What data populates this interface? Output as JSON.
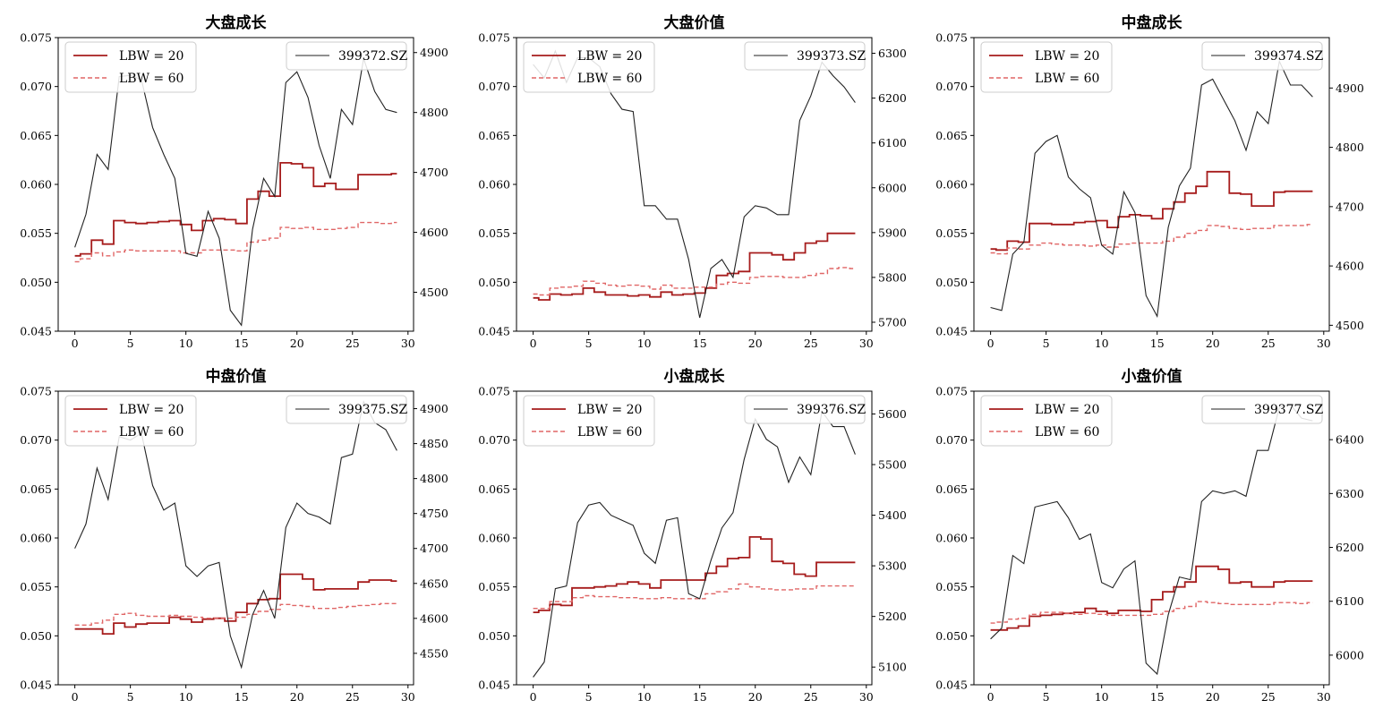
{
  "colors": {
    "lbw20": "#a61c1c",
    "lbw60": "#e06666",
    "index": "#222222",
    "axis": "#000000"
  },
  "chart_data": [
    {
      "type": "line",
      "title": "大盘成长",
      "x": [
        0,
        1,
        2,
        3,
        4,
        5,
        6,
        7,
        8,
        9,
        10,
        11,
        12,
        13,
        14,
        15,
        16,
        17,
        18,
        19,
        20,
        21,
        22,
        23,
        24,
        25,
        26,
        27,
        28,
        29
      ],
      "xlim": [
        -1.5,
        30.5
      ],
      "xticks": [
        "0",
        "5",
        "10",
        "15",
        "20",
        "25",
        "30"
      ],
      "ylim": [
        0.045,
        0.075
      ],
      "yticks": [
        "0.045",
        "0.050",
        "0.055",
        "0.060",
        "0.065",
        "0.070",
        "0.075"
      ],
      "y2lim": [
        4435,
        4925
      ],
      "y2ticks": [
        "4500",
        "4600",
        "4700",
        "4800",
        "4900"
      ],
      "legend_left": [
        "LBW = 20",
        "LBW = 60"
      ],
      "legend_right": "399372.SZ",
      "series": [
        {
          "name": "LBW = 20",
          "axis": "left",
          "style": "step",
          "values": [
            0.0527,
            0.0529,
            0.0543,
            0.0539,
            0.0563,
            0.0561,
            0.056,
            0.0561,
            0.0562,
            0.0563,
            0.0559,
            0.0553,
            0.0563,
            0.0565,
            0.0564,
            0.056,
            0.0585,
            0.0593,
            0.0588,
            0.0622,
            0.0621,
            0.0617,
            0.0598,
            0.0601,
            0.0595,
            0.0595,
            0.061,
            0.061,
            0.061,
            0.0611
          ]
        },
        {
          "name": "LBW = 60",
          "axis": "left",
          "style": "step-dashed",
          "values": [
            0.0521,
            0.0524,
            0.053,
            0.0527,
            0.0531,
            0.0533,
            0.0532,
            0.0532,
            0.0532,
            0.0532,
            0.053,
            0.053,
            0.0533,
            0.0533,
            0.0533,
            0.0532,
            0.0541,
            0.0543,
            0.0545,
            0.0556,
            0.0555,
            0.0556,
            0.0554,
            0.0554,
            0.0555,
            0.0556,
            0.0561,
            0.0561,
            0.056,
            0.0561
          ]
        },
        {
          "name": "399372.SZ",
          "axis": "right",
          "style": "line",
          "values": [
            4575,
            4630,
            4730,
            4705,
            4860,
            4862,
            4855,
            4775,
            4730,
            4690,
            4565,
            4560,
            4635,
            4590,
            4470,
            4445,
            4605,
            4690,
            4660,
            4850,
            4868,
            4825,
            4745,
            4690,
            4805,
            4780,
            4890,
            4835,
            4805,
            4800
          ]
        }
      ]
    },
    {
      "type": "line",
      "title": "大盘价值",
      "x": [
        0,
        1,
        2,
        3,
        4,
        5,
        6,
        7,
        8,
        9,
        10,
        11,
        12,
        13,
        14,
        15,
        16,
        17,
        18,
        19,
        20,
        21,
        22,
        23,
        24,
        25,
        26,
        27,
        28,
        29
      ],
      "xlim": [
        -1.5,
        30.5
      ],
      "xticks": [
        "0",
        "5",
        "10",
        "15",
        "20",
        "25",
        "30"
      ],
      "ylim": [
        0.045,
        0.075
      ],
      "yticks": [
        "0.045",
        "0.050",
        "0.055",
        "0.060",
        "0.065",
        "0.070",
        "0.075"
      ],
      "y2lim": [
        5680,
        6335
      ],
      "y2ticks": [
        "5700",
        "5800",
        "5900",
        "6000",
        "6100",
        "6200",
        "6300"
      ],
      "legend_left": [
        "LBW = 20",
        "LBW = 60"
      ],
      "legend_right": "399373.SZ",
      "series": [
        {
          "name": "LBW = 20",
          "axis": "left",
          "style": "step",
          "values": [
            0.0484,
            0.0482,
            0.0488,
            0.0487,
            0.0488,
            0.0494,
            0.049,
            0.0487,
            0.0487,
            0.0486,
            0.0487,
            0.0485,
            0.049,
            0.0487,
            0.0488,
            0.0489,
            0.0494,
            0.0507,
            0.0509,
            0.0511,
            0.053,
            0.053,
            0.0528,
            0.0523,
            0.053,
            0.054,
            0.0542,
            0.055,
            0.055,
            0.055
          ]
        },
        {
          "name": "LBW = 60",
          "axis": "left",
          "style": "step-dashed",
          "values": [
            0.0488,
            0.0487,
            0.0494,
            0.0495,
            0.0496,
            0.0501,
            0.0499,
            0.0497,
            0.0496,
            0.0497,
            0.0496,
            0.0493,
            0.0497,
            0.0494,
            0.0494,
            0.0495,
            0.0495,
            0.0498,
            0.05,
            0.0499,
            0.0505,
            0.0506,
            0.0506,
            0.0505,
            0.0505,
            0.0507,
            0.0509,
            0.0514,
            0.0515,
            0.0514
          ]
        },
        {
          "name": "399373.SZ",
          "axis": "right",
          "style": "line",
          "values": [
            6275,
            6245,
            6305,
            6235,
            6290,
            6290,
            6270,
            6210,
            6175,
            6170,
            5960,
            5960,
            5930,
            5930,
            5840,
            5710,
            5820,
            5840,
            5800,
            5935,
            5960,
            5955,
            5940,
            5940,
            6150,
            6205,
            6280,
            6250,
            6225,
            6190
          ]
        }
      ]
    },
    {
      "type": "line",
      "title": "中盘成长",
      "x": [
        0,
        1,
        2,
        3,
        4,
        5,
        6,
        7,
        8,
        9,
        10,
        11,
        12,
        13,
        14,
        15,
        16,
        17,
        18,
        19,
        20,
        21,
        22,
        23,
        24,
        25,
        26,
        27,
        28,
        29
      ],
      "xlim": [
        -1.5,
        30.5
      ],
      "xticks": [
        "0",
        "5",
        "10",
        "15",
        "20",
        "25",
        "30"
      ],
      "ylim": [
        0.045,
        0.075
      ],
      "yticks": [
        "0.045",
        "0.050",
        "0.055",
        "0.060",
        "0.065",
        "0.070",
        "0.075"
      ],
      "y2lim": [
        4490,
        4985
      ],
      "y2ticks": [
        "4500",
        "4600",
        "4700",
        "4800",
        "4900"
      ],
      "legend_left": [
        "LBW = 20",
        "LBW = 60"
      ],
      "legend_right": "399374.SZ",
      "series": [
        {
          "name": "LBW = 20",
          "axis": "left",
          "style": "step",
          "values": [
            0.0534,
            0.0533,
            0.0542,
            0.0541,
            0.056,
            0.056,
            0.0559,
            0.0559,
            0.0561,
            0.0562,
            0.0563,
            0.0556,
            0.0567,
            0.0569,
            0.0568,
            0.0565,
            0.0575,
            0.0582,
            0.0591,
            0.0598,
            0.0613,
            0.0613,
            0.0591,
            0.059,
            0.0578,
            0.0578,
            0.0592,
            0.0593,
            0.0593,
            0.0593
          ]
        },
        {
          "name": "LBW = 60",
          "axis": "left",
          "style": "step-dashed",
          "values": [
            0.053,
            0.0529,
            0.0535,
            0.0534,
            0.0538,
            0.054,
            0.0539,
            0.0538,
            0.0538,
            0.0537,
            0.0538,
            0.0536,
            0.0539,
            0.054,
            0.054,
            0.054,
            0.0542,
            0.0546,
            0.055,
            0.0553,
            0.0558,
            0.0557,
            0.0555,
            0.0554,
            0.0555,
            0.0555,
            0.0558,
            0.0558,
            0.0558,
            0.0559
          ]
        },
        {
          "name": "399374.SZ",
          "axis": "right",
          "style": "line",
          "values": [
            4530,
            4525,
            4620,
            4640,
            4790,
            4810,
            4820,
            4750,
            4730,
            4715,
            4635,
            4620,
            4725,
            4690,
            4550,
            4515,
            4665,
            4735,
            4765,
            4905,
            4915,
            4880,
            4845,
            4795,
            4860,
            4840,
            4945,
            4905,
            4905,
            4885
          ]
        }
      ]
    },
    {
      "type": "line",
      "title": "中盘价值",
      "x": [
        0,
        1,
        2,
        3,
        4,
        5,
        6,
        7,
        8,
        9,
        10,
        11,
        12,
        13,
        14,
        15,
        16,
        17,
        18,
        19,
        20,
        21,
        22,
        23,
        24,
        25,
        26,
        27,
        28,
        29
      ],
      "xlim": [
        -1.5,
        30.5
      ],
      "xticks": [
        "0",
        "5",
        "10",
        "15",
        "20",
        "25",
        "30"
      ],
      "ylim": [
        0.045,
        0.075
      ],
      "yticks": [
        "0.045",
        "0.050",
        "0.055",
        "0.060",
        "0.065",
        "0.070",
        "0.075"
      ],
      "y2lim": [
        4505,
        4925
      ],
      "y2ticks": [
        "4550",
        "4600",
        "4650",
        "4700",
        "4750",
        "4800",
        "4850",
        "4900"
      ],
      "legend_left": [
        "LBW = 20",
        "LBW = 60"
      ],
      "legend_right": "399375.SZ",
      "series": [
        {
          "name": "LBW = 20",
          "axis": "left",
          "style": "step",
          "values": [
            0.0507,
            0.0507,
            0.0507,
            0.0502,
            0.0513,
            0.0509,
            0.0512,
            0.0513,
            0.0513,
            0.0519,
            0.0517,
            0.0514,
            0.0517,
            0.0518,
            0.0515,
            0.0524,
            0.0533,
            0.0537,
            0.0538,
            0.0563,
            0.0563,
            0.0558,
            0.0547,
            0.0548,
            0.0548,
            0.0548,
            0.0555,
            0.0557,
            0.0557,
            0.0556
          ]
        },
        {
          "name": "LBW = 60",
          "axis": "left",
          "style": "step-dashed",
          "values": [
            0.0511,
            0.0511,
            0.0513,
            0.0516,
            0.0522,
            0.0523,
            0.0521,
            0.052,
            0.052,
            0.0521,
            0.052,
            0.0519,
            0.0518,
            0.0518,
            0.0518,
            0.0519,
            0.0522,
            0.0525,
            0.0527,
            0.0532,
            0.0531,
            0.053,
            0.0528,
            0.0528,
            0.0529,
            0.053,
            0.0531,
            0.0532,
            0.0533,
            0.0533
          ]
        },
        {
          "name": "399375.SZ",
          "axis": "right",
          "style": "line",
          "values": [
            4700,
            4735,
            4815,
            4770,
            4860,
            4855,
            4865,
            4790,
            4755,
            4765,
            4675,
            4660,
            4675,
            4680,
            4575,
            4530,
            4605,
            4640,
            4600,
            4730,
            4765,
            4750,
            4745,
            4735,
            4830,
            4835,
            4910,
            4880,
            4870,
            4840
          ]
        }
      ]
    },
    {
      "type": "line",
      "title": "小盘成长",
      "x": [
        0,
        1,
        2,
        3,
        4,
        5,
        6,
        7,
        8,
        9,
        10,
        11,
        12,
        13,
        14,
        15,
        16,
        17,
        18,
        19,
        20,
        21,
        22,
        23,
        24,
        25,
        26,
        27,
        28,
        29
      ],
      "xlim": [
        -1.5,
        30.5
      ],
      "xticks": [
        "0",
        "5",
        "10",
        "15",
        "20",
        "25",
        "30"
      ],
      "ylim": [
        0.045,
        0.075
      ],
      "yticks": [
        "0.045",
        "0.050",
        "0.055",
        "0.060",
        "0.065",
        "0.070",
        "0.075"
      ],
      "y2lim": [
        5065,
        5645
      ],
      "y2ticks": [
        "5100",
        "5200",
        "5300",
        "5400",
        "5500",
        "5600"
      ],
      "legend_left": [
        "LBW = 20",
        "LBW = 60"
      ],
      "legend_right": "399376.SZ",
      "series": [
        {
          "name": "LBW = 20",
          "axis": "left",
          "style": "step",
          "values": [
            0.0524,
            0.0526,
            0.0532,
            0.0531,
            0.0549,
            0.0549,
            0.055,
            0.0551,
            0.0553,
            0.0555,
            0.0553,
            0.0549,
            0.0557,
            0.0557,
            0.0557,
            0.0557,
            0.0564,
            0.0571,
            0.0579,
            0.058,
            0.0601,
            0.0599,
            0.0576,
            0.0574,
            0.0563,
            0.0561,
            0.0575,
            0.0575,
            0.0575,
            0.0575
          ]
        },
        {
          "name": "LBW = 60",
          "axis": "left",
          "style": "step-dashed",
          "values": [
            0.0528,
            0.0528,
            0.0535,
            0.0535,
            0.0539,
            0.0541,
            0.054,
            0.054,
            0.0539,
            0.0539,
            0.0538,
            0.0538,
            0.0539,
            0.0538,
            0.0538,
            0.0538,
            0.0543,
            0.0545,
            0.0548,
            0.0553,
            0.055,
            0.0548,
            0.0547,
            0.0547,
            0.0548,
            0.0548,
            0.0551,
            0.0551,
            0.0551,
            0.0551
          ]
        },
        {
          "name": "399376.SZ",
          "axis": "right",
          "style": "line",
          "values": [
            5080,
            5110,
            5255,
            5260,
            5385,
            5420,
            5425,
            5400,
            5390,
            5380,
            5325,
            5305,
            5390,
            5395,
            5245,
            5235,
            5310,
            5375,
            5405,
            5510,
            5590,
            5550,
            5535,
            5465,
            5515,
            5480,
            5605,
            5575,
            5575,
            5520
          ]
        }
      ]
    },
    {
      "type": "line",
      "title": "小盘价值",
      "x": [
        0,
        1,
        2,
        3,
        4,
        5,
        6,
        7,
        8,
        9,
        10,
        11,
        12,
        13,
        14,
        15,
        16,
        17,
        18,
        19,
        20,
        21,
        22,
        23,
        24,
        25,
        26,
        27,
        28,
        29
      ],
      "xlim": [
        -1.5,
        30.5
      ],
      "xticks": [
        "0",
        "5",
        "10",
        "15",
        "20",
        "25",
        "30"
      ],
      "ylim": [
        0.045,
        0.075
      ],
      "yticks": [
        "0.045",
        "0.050",
        "0.055",
        "0.060",
        "0.065",
        "0.070",
        "0.075"
      ],
      "y2lim": [
        5945,
        6490
      ],
      "y2ticks": [
        "6000",
        "6100",
        "6200",
        "6300",
        "6400"
      ],
      "legend_left": [
        "LBW = 20",
        "LBW = 60"
      ],
      "legend_right": "399377.SZ",
      "series": [
        {
          "name": "LBW = 20",
          "axis": "left",
          "style": "step",
          "values": [
            0.0506,
            0.0506,
            0.0508,
            0.051,
            0.052,
            0.0521,
            0.0522,
            0.0523,
            0.0524,
            0.0528,
            0.0525,
            0.0523,
            0.0526,
            0.0526,
            0.0525,
            0.0537,
            0.0545,
            0.055,
            0.0555,
            0.0571,
            0.0571,
            0.0568,
            0.0554,
            0.0555,
            0.055,
            0.055,
            0.0555,
            0.0556,
            0.0556,
            0.0556
          ]
        },
        {
          "name": "LBW = 60",
          "axis": "left",
          "style": "step-dashed",
          "values": [
            0.0513,
            0.0514,
            0.0517,
            0.0518,
            0.0522,
            0.0524,
            0.0524,
            0.0523,
            0.0522,
            0.0523,
            0.0522,
            0.0521,
            0.0521,
            0.0521,
            0.0521,
            0.0522,
            0.0525,
            0.0528,
            0.053,
            0.0535,
            0.0534,
            0.0533,
            0.0532,
            0.0532,
            0.0532,
            0.0532,
            0.0534,
            0.0534,
            0.0533,
            0.0534
          ]
        },
        {
          "name": "399377.SZ",
          "axis": "right",
          "style": "line",
          "values": [
            6030,
            6050,
            6185,
            6170,
            6275,
            6280,
            6285,
            6255,
            6215,
            6225,
            6135,
            6125,
            6160,
            6175,
            5985,
            5965,
            6075,
            6145,
            6140,
            6285,
            6305,
            6300,
            6305,
            6295,
            6380,
            6380,
            6460,
            6465,
            6440,
            6435
          ]
        }
      ]
    }
  ]
}
